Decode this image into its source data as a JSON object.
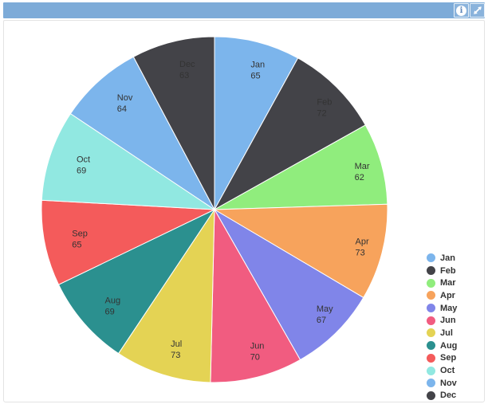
{
  "widget": {
    "header_bar_color": "#7dabd8",
    "panel_background": "#ffffff",
    "panel_border_color": "#e3e3e3"
  },
  "header": {
    "buttons": [
      {
        "name": "info",
        "glyph": "i"
      },
      {
        "name": "expand",
        "glyph": "⤢"
      }
    ]
  },
  "chart_data": {
    "type": "pie",
    "title": "",
    "categories": [
      "Jan",
      "Feb",
      "Mar",
      "Apr",
      "May",
      "Jun",
      "Jul",
      "Aug",
      "Sep",
      "Oct",
      "Nov",
      "Dec"
    ],
    "values": [
      65,
      72,
      62,
      73,
      67,
      70,
      73,
      69,
      65,
      69,
      64,
      63
    ],
    "colors": [
      "#7cb5ec",
      "#434348",
      "#90ed7d",
      "#f7a35c",
      "#8085e9",
      "#f15c80",
      "#e4d354",
      "#2b908f",
      "#f45b5b",
      "#91e8e1",
      "#7cb5ec",
      "#434348"
    ],
    "data_labels": {
      "show": true,
      "format": "{name}\n{value}",
      "color": "#333333"
    },
    "slice_border_color": "#ffffff",
    "start_angle_deg": 0,
    "direction": "clockwise",
    "legend": {
      "position": "right",
      "marker_shape": "circle",
      "text_color": "#333333"
    }
  }
}
